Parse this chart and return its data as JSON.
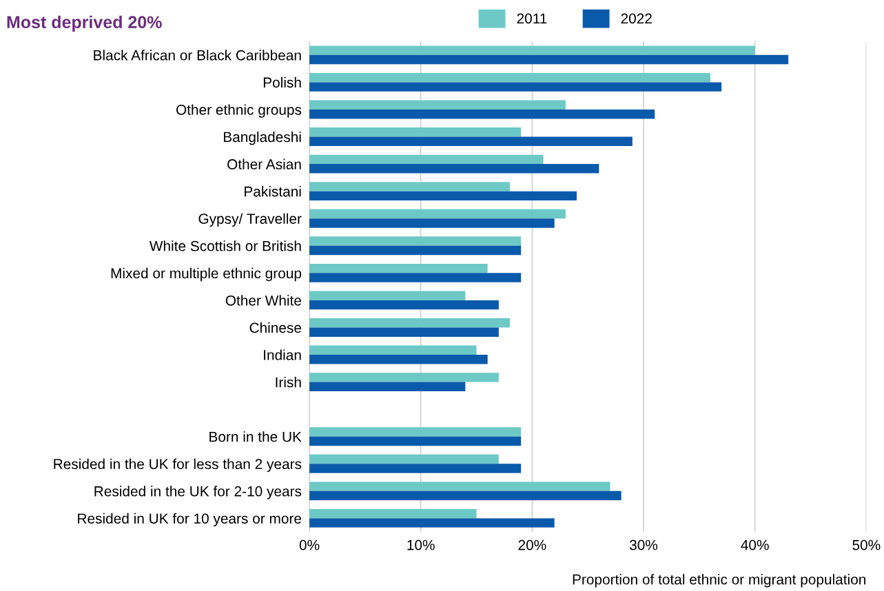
{
  "chart_data": {
    "type": "bar",
    "orientation": "horizontal",
    "title": "Most deprived 20%",
    "xlabel": "Proportion of total ethnic or migrant population",
    "categories": [
      "Black African or Black Caribbean",
      "Polish",
      "Other ethnic groups",
      "Bangladeshi",
      "Other Asian",
      "Pakistani",
      "Gypsy/ Traveller",
      "White Scottish or British",
      "Mixed or multiple ethnic group",
      "Other White",
      "Chinese",
      "Indian",
      "Irish",
      null,
      "Born in the UK",
      "Resided in the UK for less than 2 years",
      "Resided in the UK for 2-10 years",
      "Resided in UK for 10 years or more"
    ],
    "series": [
      {
        "name": "2011",
        "color": "#6cc9c6",
        "values": [
          40,
          36,
          23,
          19,
          21,
          18,
          23,
          19,
          16,
          14,
          18,
          15,
          17,
          null,
          19,
          17,
          27,
          15
        ]
      },
      {
        "name": "2022",
        "color": "#0a5aab",
        "values": [
          43,
          37,
          31,
          29,
          26,
          24,
          22,
          19,
          19,
          17,
          17,
          16,
          14,
          null,
          19,
          19,
          28,
          22
        ]
      }
    ],
    "xlim": [
      0,
      50
    ],
    "xticks": [
      {
        "value": 0,
        "label": "0%"
      },
      {
        "value": 10,
        "label": "10%"
      },
      {
        "value": 20,
        "label": "20%"
      },
      {
        "value": 30,
        "label": "30%"
      },
      {
        "value": 40,
        "label": "40%"
      },
      {
        "value": 50,
        "label": "50%"
      }
    ],
    "grid": "x",
    "legend": "top"
  }
}
